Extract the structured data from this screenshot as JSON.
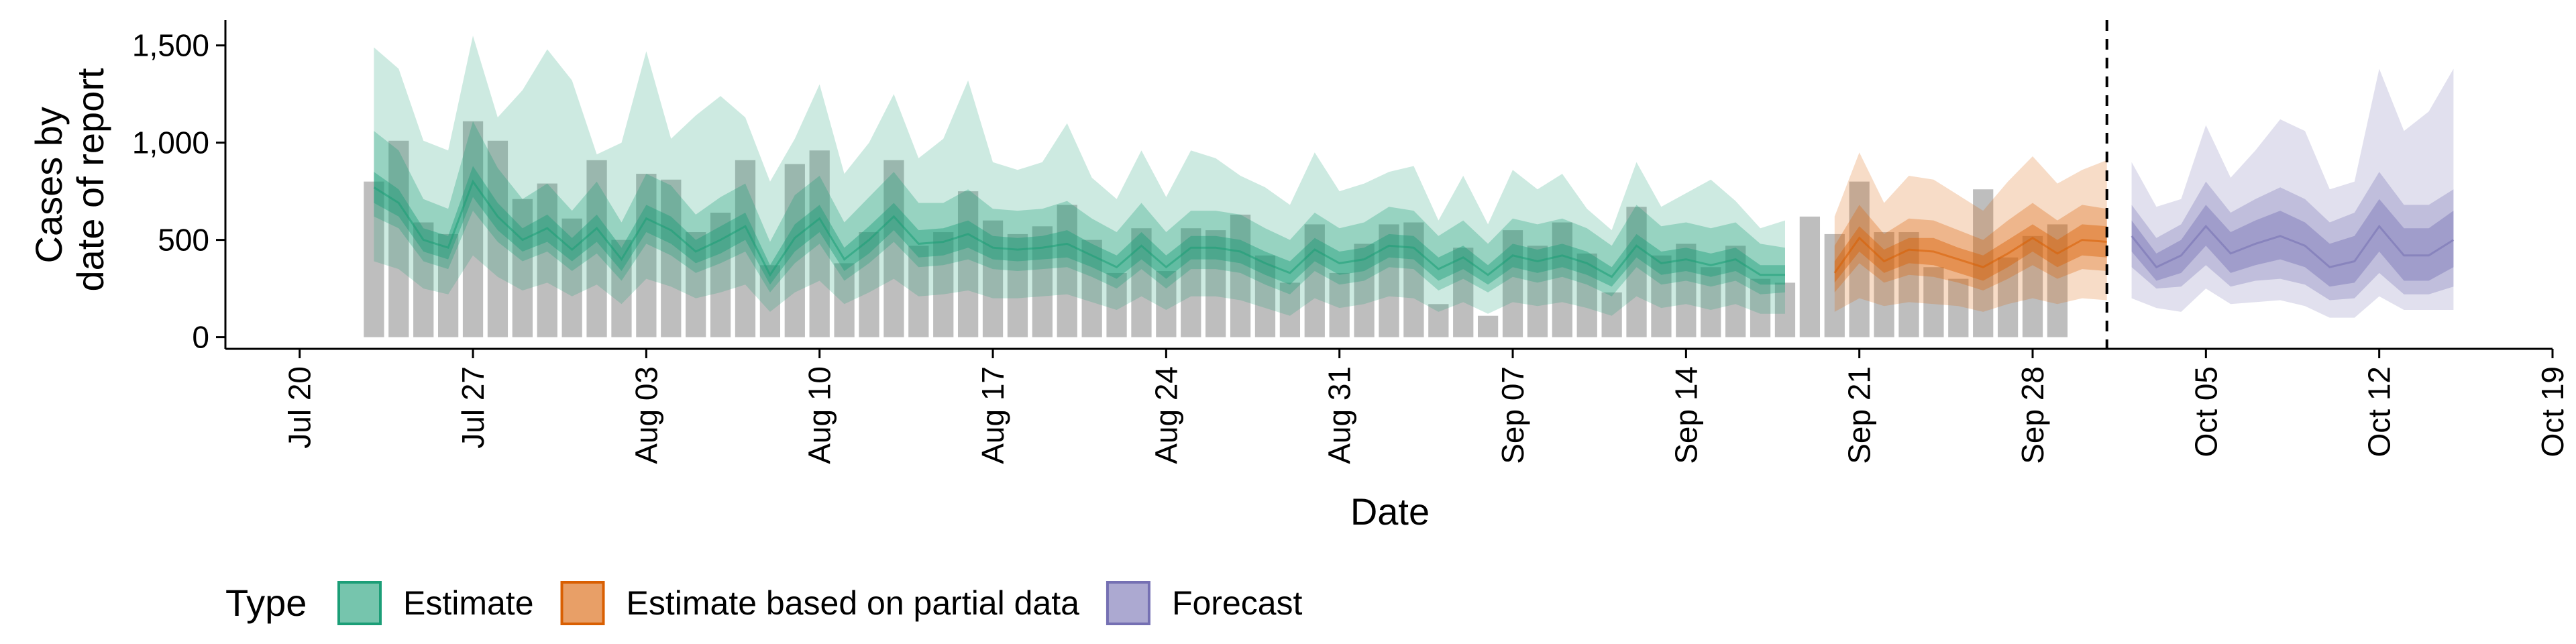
{
  "chart_data": {
    "type": "area",
    "xlabel": "Date",
    "ylabel_lines": [
      "Cases by",
      "date of report"
    ],
    "x_ticks": [
      "Jul 20",
      "Jul 27",
      "Aug 03",
      "Aug 10",
      "Aug 17",
      "Aug 24",
      "Aug 31",
      "Sep 07",
      "Sep 14",
      "Sep 21",
      "Sep 28",
      "Oct 05",
      "Oct 12",
      "Oct 19"
    ],
    "y_ticks": [
      "0",
      "500",
      "1,000",
      "1,500"
    ],
    "y_tick_values": [
      0,
      500,
      1000,
      1500
    ],
    "xlim": [
      "2020-07-17",
      "2020-10-19"
    ],
    "ylim": [
      -60,
      1630
    ],
    "first_date": "2020-07-23",
    "forecast_cutoff": "2020-10-01",
    "legend": {
      "title": "Type",
      "position": "bottom-left",
      "items": [
        {
          "label": "Estimate",
          "color": "#1b9e77"
        },
        {
          "label": "Estimate based on partial data",
          "color": "#d95f02"
        },
        {
          "label": "Forecast",
          "color": "#7570b3"
        }
      ]
    },
    "colors": {
      "bars": "#a8a8a8",
      "Estimate": "#1b9e77",
      "Estimate based on partial data": "#d95f02",
      "Forecast": "#7570b3",
      "cutoff_line": "#000000"
    },
    "reported_cases": [
      800,
      1010,
      590,
      530,
      1110,
      1010,
      710,
      790,
      610,
      910,
      500,
      840,
      810,
      540,
      640,
      910,
      370,
      890,
      960,
      380,
      540,
      910,
      470,
      540,
      750,
      600,
      530,
      570,
      680,
      500,
      330,
      560,
      340,
      560,
      550,
      630,
      420,
      280,
      580,
      330,
      480,
      580,
      590,
      170,
      460,
      110,
      550,
      470,
      590,
      430,
      230,
      670,
      420,
      480,
      360,
      470,
      300,
      280,
      620,
      530,
      800,
      540,
      540,
      360,
      300,
      760,
      410,
      520,
      580
    ],
    "series": [
      {
        "name": "Estimate",
        "start_date": "2020-07-23",
        "median": [
          770,
          690,
          500,
          460,
          800,
          620,
          500,
          560,
          450,
          560,
          400,
          610,
          550,
          440,
          500,
          570,
          320,
          510,
          610,
          400,
          500,
          620,
          480,
          490,
          530,
          460,
          450,
          460,
          480,
          420,
          360,
          470,
          360,
          460,
          460,
          440,
          380,
          330,
          450,
          380,
          400,
          470,
          460,
          350,
          410,
          320,
          420,
          390,
          420,
          380,
          310,
          470,
          380,
          400,
          370,
          400,
          320,
          320
        ],
        "inner_low": [
          690,
          620,
          440,
          400,
          720,
          550,
          440,
          490,
          390,
          490,
          340,
          540,
          480,
          380,
          430,
          500,
          270,
          440,
          540,
          340,
          430,
          550,
          410,
          420,
          460,
          400,
          390,
          400,
          410,
          360,
          300,
          400,
          300,
          400,
          400,
          380,
          320,
          270,
          390,
          320,
          340,
          410,
          400,
          290,
          350,
          270,
          360,
          330,
          360,
          320,
          260,
          410,
          320,
          340,
          310,
          340,
          270,
          270
        ],
        "inner_high": [
          850,
          760,
          560,
          520,
          880,
          690,
          560,
          630,
          510,
          630,
          460,
          680,
          620,
          500,
          570,
          640,
          370,
          580,
          680,
          460,
          570,
          690,
          550,
          560,
          600,
          520,
          510,
          520,
          550,
          480,
          420,
          540,
          420,
          520,
          520,
          500,
          440,
          390,
          510,
          440,
          460,
          530,
          520,
          410,
          470,
          370,
          480,
          450,
          480,
          440,
          360,
          530,
          440,
          460,
          430,
          460,
          370,
          370
        ],
        "mid_low": [
          620,
          560,
          390,
          350,
          650,
          490,
          390,
          440,
          340,
          430,
          290,
          480,
          420,
          330,
          380,
          440,
          230,
          380,
          480,
          290,
          380,
          490,
          360,
          370,
          400,
          350,
          340,
          350,
          360,
          310,
          250,
          350,
          250,
          350,
          350,
          330,
          270,
          220,
          340,
          270,
          290,
          360,
          350,
          240,
          300,
          230,
          310,
          280,
          310,
          270,
          210,
          360,
          270,
          290,
          260,
          290,
          220,
          230
        ],
        "mid_high": [
          1060,
          960,
          710,
          660,
          1110,
          870,
          710,
          790,
          650,
          800,
          590,
          840,
          780,
          630,
          720,
          790,
          490,
          730,
          830,
          590,
          720,
          850,
          690,
          690,
          760,
          660,
          650,
          660,
          700,
          610,
          540,
          690,
          540,
          650,
          650,
          630,
          560,
          500,
          640,
          560,
          590,
          670,
          650,
          520,
          600,
          480,
          610,
          580,
          610,
          560,
          470,
          680,
          570,
          590,
          560,
          590,
          480,
          460
        ],
        "outer_low": [
          390,
          350,
          250,
          220,
          420,
          310,
          240,
          280,
          210,
          270,
          170,
          300,
          260,
          200,
          230,
          270,
          130,
          230,
          290,
          170,
          230,
          300,
          210,
          220,
          240,
          200,
          200,
          210,
          220,
          180,
          140,
          210,
          140,
          210,
          210,
          190,
          150,
          110,
          200,
          150,
          170,
          210,
          200,
          130,
          180,
          120,
          180,
          160,
          180,
          150,
          110,
          210,
          150,
          170,
          140,
          170,
          120,
          120
        ],
        "outer_high": [
          1490,
          1380,
          1010,
          960,
          1550,
          1130,
          1270,
          1480,
          1320,
          940,
          1000,
          1470,
          1020,
          1140,
          1240,
          1130,
          800,
          1020,
          1300,
          840,
          1000,
          1250,
          920,
          1020,
          1320,
          900,
          860,
          900,
          1100,
          820,
          710,
          960,
          720,
          960,
          920,
          830,
          770,
          680,
          950,
          750,
          790,
          850,
          880,
          600,
          830,
          580,
          860,
          760,
          840,
          660,
          550,
          900,
          670,
          740,
          810,
          700,
          560,
          600
        ]
      },
      {
        "name": "Estimate based on partial data",
        "start_date": "2020-09-20",
        "median": [
          330,
          510,
          390,
          450,
          440,
          400,
          360,
          430,
          510,
          430,
          500,
          490
        ],
        "inner_low": [
          280,
          440,
          330,
          380,
          370,
          330,
          290,
          360,
          440,
          360,
          420,
          410
        ],
        "inner_high": [
          390,
          570,
          450,
          510,
          510,
          460,
          420,
          500,
          580,
          500,
          580,
          570
        ],
        "mid_low": [
          230,
          380,
          280,
          320,
          310,
          280,
          240,
          300,
          370,
          300,
          350,
          340
        ],
        "mid_high": [
          470,
          680,
          530,
          610,
          600,
          550,
          500,
          600,
          690,
          600,
          680,
          660
        ],
        "outer_low": [
          130,
          200,
          160,
          180,
          170,
          160,
          130,
          170,
          200,
          170,
          200,
          190
        ],
        "outer_high": [
          620,
          950,
          690,
          830,
          810,
          730,
          650,
          800,
          930,
          790,
          860,
          910
        ]
      },
      {
        "name": "Forecast",
        "start_date": "2020-10-02",
        "median": [
          520,
          360,
          420,
          570,
          430,
          480,
          520,
          470,
          360,
          390,
          570,
          420,
          420,
          500
        ],
        "inner_low": [
          440,
          290,
          330,
          470,
          330,
          370,
          400,
          360,
          260,
          280,
          440,
          290,
          290,
          360
        ],
        "inner_high": [
          600,
          430,
          500,
          680,
          540,
          600,
          650,
          590,
          480,
          520,
          710,
          560,
          560,
          650
        ],
        "mid_low": [
          360,
          250,
          260,
          370,
          260,
          290,
          300,
          270,
          190,
          200,
          330,
          220,
          220,
          260
        ],
        "mid_high": [
          680,
          510,
          580,
          800,
          640,
          710,
          770,
          710,
          590,
          640,
          850,
          680,
          680,
          760
        ],
        "outer_low": [
          200,
          150,
          130,
          250,
          170,
          180,
          190,
          160,
          100,
          100,
          210,
          140,
          140,
          140
        ],
        "outer_high": [
          900,
          670,
          710,
          1090,
          820,
          960,
          1120,
          1060,
          760,
          800,
          1380,
          1060,
          1160,
          1380
        ]
      }
    ]
  }
}
